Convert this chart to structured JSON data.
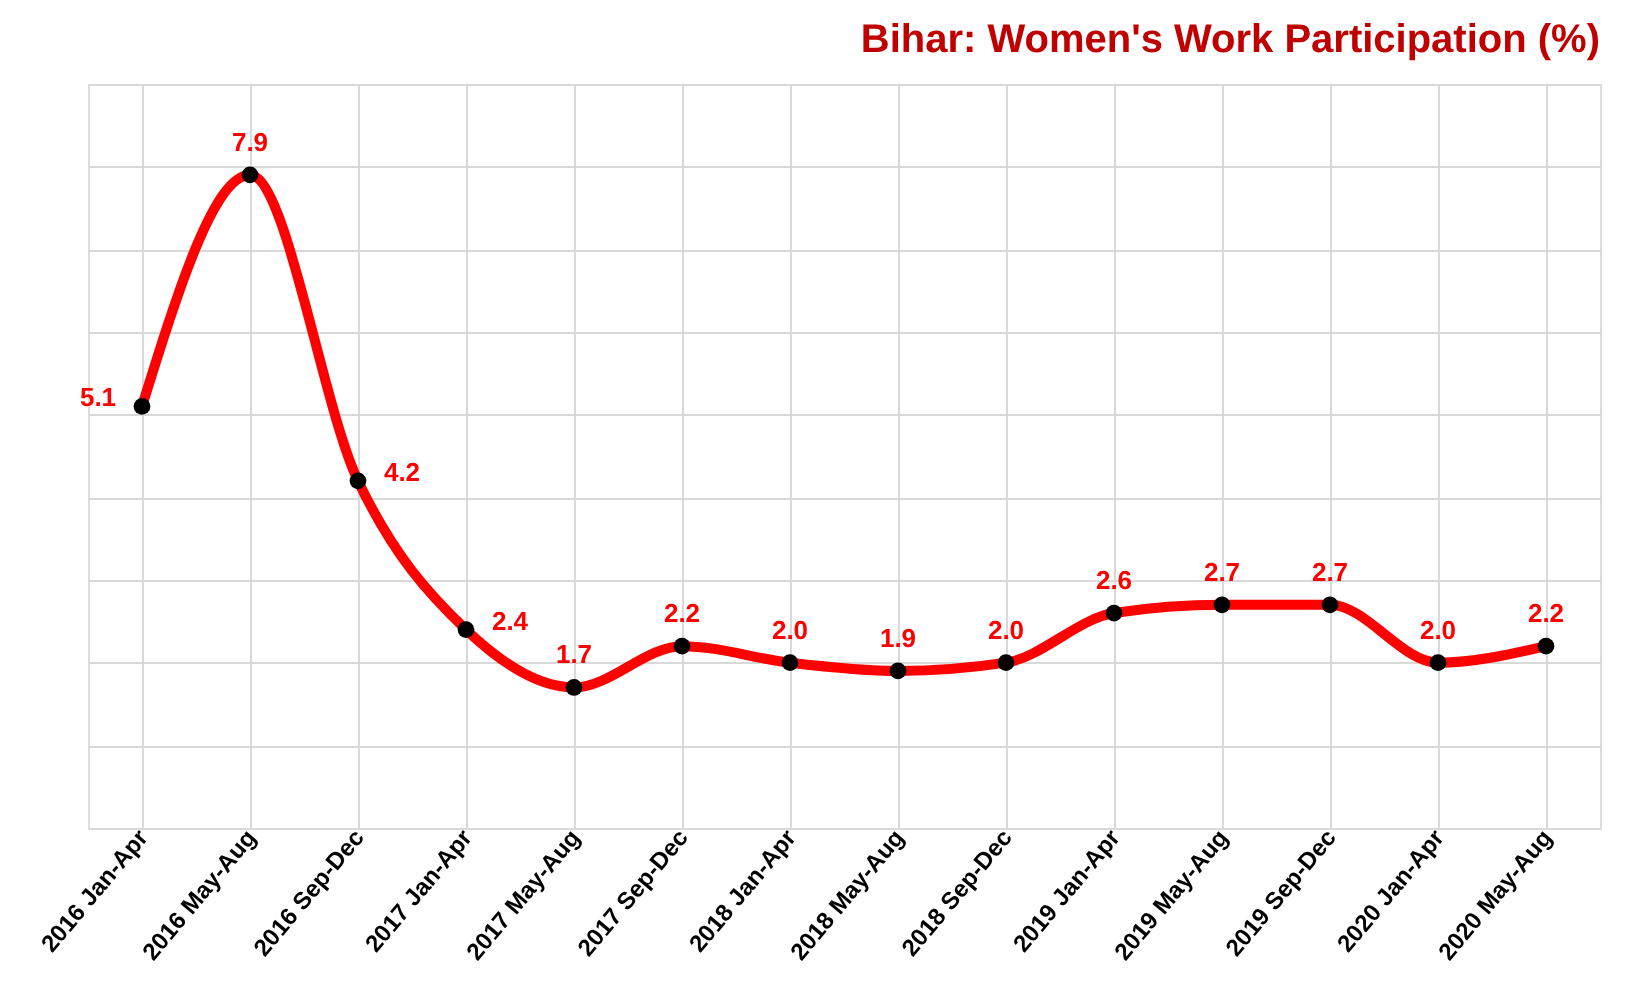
{
  "chart_data": {
    "type": "line",
    "title": "Bihar: Women's Work Participation (%)",
    "categories": [
      "2016 Jan-Apr",
      "2016 May-Aug",
      "2016 Sep-Dec",
      "2017 Jan-Apr",
      "2017 May-Aug",
      "2017 Sep-Dec",
      "2018 Jan-Apr",
      "2018 May-Aug",
      "2018 Sep-Dec",
      "2019 Jan-Apr",
      "2019 May-Aug",
      "2019 Sep-Dec",
      "2020 Jan-Apr",
      "2020 May-Aug"
    ],
    "series": [
      {
        "color": "#ff0000",
        "values": [
          5.1,
          7.9,
          4.2,
          2.4,
          1.7,
          2.2,
          2.0,
          1.9,
          2.0,
          2.6,
          2.7,
          2.7,
          2.0,
          2.2
        ],
        "value_labels": [
          "5.1",
          "7.9",
          "4.2",
          "2.4",
          "1.7",
          "2.2",
          "2.0",
          "1.9",
          "2.0",
          "2.6",
          "2.7",
          "2.7",
          "2.0",
          "2.2"
        ]
      }
    ],
    "ylim": [
      0,
      9
    ],
    "yticks": [
      {
        "value": 0,
        "label": null
      },
      {
        "value": 1,
        "label": null
      },
      {
        "value": 2,
        "label": null
      },
      {
        "value": 3,
        "label": null
      },
      {
        "value": 4,
        "label": null
      },
      {
        "value": 5,
        "label": null
      },
      {
        "value": 6,
        "label": null
      },
      {
        "value": 7,
        "label": null
      },
      {
        "value": 8,
        "label": null
      },
      {
        "value": 9,
        "label": null
      }
    ],
    "tick_labels": "x",
    "grid": true,
    "marker": "circle",
    "line_style": "solid"
  }
}
